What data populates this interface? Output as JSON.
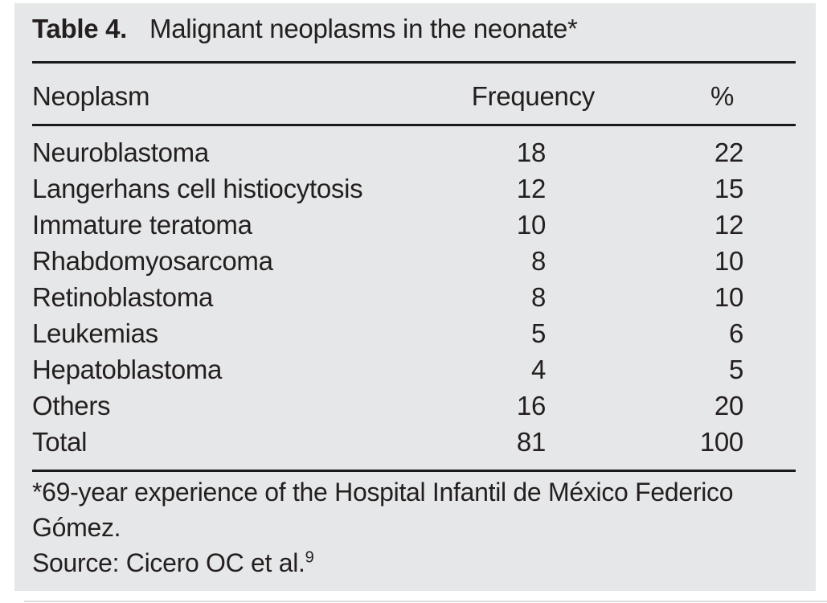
{
  "page": {
    "panel_background": "#e6e7e8",
    "text_color": "#231f20",
    "rule_color": "#1a1a1a"
  },
  "table": {
    "caption_label": "Table 4.",
    "caption_text": "Malignant neoplasms in the neonate*",
    "columns": [
      "Neoplasm",
      "Frequency",
      "%"
    ],
    "rows": [
      [
        "Neuroblastoma",
        "18",
        "22"
      ],
      [
        "Langerhans cell histiocytosis",
        "12",
        "15"
      ],
      [
        "Immature teratoma",
        "10",
        "12"
      ],
      [
        "Rhabdomyosarcoma",
        "8",
        "10"
      ],
      [
        "Retinoblastoma",
        "8",
        "10"
      ],
      [
        "Leukemias",
        "5",
        "6"
      ],
      [
        "Hepatoblastoma",
        "4",
        "5"
      ],
      [
        "Others",
        "16",
        "20"
      ],
      [
        "Total",
        "81",
        "100"
      ]
    ],
    "footnote": "*69-year experience of the Hospital Infantil de México Federico Gómez.",
    "source": "Source: Cicero OC et al.",
    "source_ref": "9"
  }
}
